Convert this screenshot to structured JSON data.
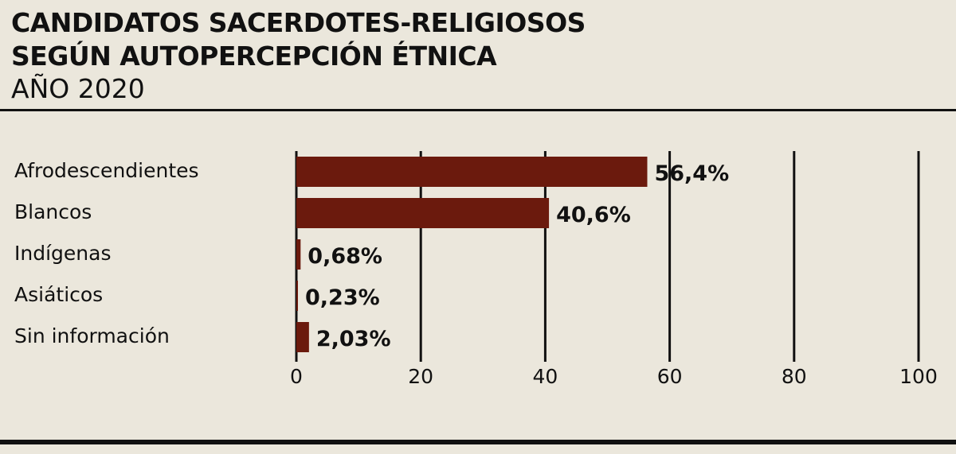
{
  "header": {
    "title_line1": "CANDIDATOS SACERDOTES-RELIGIOSOS",
    "title_line2": "SEGÚN AUTOPERCEPCIÓN ÉTNICA",
    "subtitle": "AÑO 2020"
  },
  "chart_data": {
    "type": "bar",
    "orientation": "horizontal",
    "title": "CANDIDATOS SACERDOTES-RELIGIOSOS SEGÚN AUTOPERCEPCIÓN ÉTNICA",
    "subtitle": "AÑO 2020",
    "categories": [
      "Afrodescendientes",
      "Blancos",
      "Indígenas",
      "Asiáticos",
      "Sin información"
    ],
    "values": [
      56.4,
      40.6,
      0.68,
      0.23,
      2.03
    ],
    "value_labels": [
      "56,4%",
      "40,6%",
      "0,68%",
      "0,23%",
      "2,03%"
    ],
    "xlim": [
      0,
      100
    ],
    "ticks": [
      0,
      20,
      40,
      60,
      80,
      100
    ],
    "tick_labels": [
      "0",
      "20",
      "40",
      "60",
      "80",
      "100"
    ],
    "grid": true,
    "bar_color": "#6b1a0d"
  }
}
